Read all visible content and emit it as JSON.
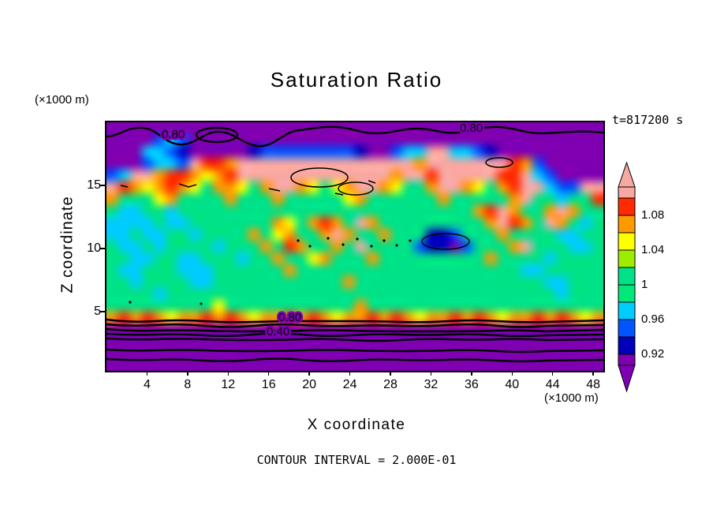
{
  "title": "Saturation Ratio",
  "timestamp": "t=817200 s",
  "footer": "CONTOUR INTERVAL = 2.000E-01",
  "axes": {
    "x": {
      "label": "X coordinate",
      "unit": "(×1000 m)",
      "ticks": [
        4,
        8,
        12,
        16,
        20,
        24,
        28,
        32,
        36,
        40,
        44,
        48
      ]
    },
    "y": {
      "label": "Z coordinate",
      "unit": "(×1000 m)",
      "ticks": [
        5,
        10,
        15
      ]
    }
  },
  "colorbar": {
    "labels": [
      "1.08",
      "1.04",
      "1",
      "0.96",
      "0.92"
    ],
    "segments": [
      {
        "name": "pink",
        "color": "#f7a8a2"
      },
      {
        "name": "red",
        "color": "#ff2a00"
      },
      {
        "name": "orange",
        "color": "#ff9900"
      },
      {
        "name": "yellow",
        "color": "#ffff00"
      },
      {
        "name": "yellow-green",
        "color": "#9ded00"
      },
      {
        "name": "green",
        "color": "#00e287"
      },
      {
        "name": "green-2",
        "color": "#00e87a"
      },
      {
        "name": "cyan",
        "color": "#00ccff"
      },
      {
        "name": "blue",
        "color": "#0055ff"
      },
      {
        "name": "navy",
        "color": "#0000bb"
      },
      {
        "name": "purple",
        "color": "#7f00b2"
      }
    ]
  },
  "chart_data": {
    "type": "filled_contour",
    "title": "Saturation Ratio",
    "time": "t=817200 s",
    "x_axis": {
      "label": "X coordinate",
      "unit": "×1000 m",
      "range": [
        0,
        49
      ],
      "ticks": [
        4,
        8,
        12,
        16,
        20,
        24,
        28,
        32,
        36,
        40,
        44,
        48
      ]
    },
    "y_axis": {
      "label": "Z coordinate",
      "unit": "×1000 m",
      "range": [
        0,
        20
      ],
      "ticks": [
        5,
        10,
        15
      ]
    },
    "contour_interval": "2.000E-01",
    "contour_line_labels": [
      "0.80",
      "0.80",
      "0.80",
      "0.40"
    ],
    "color_levels": [
      "0.92",
      "0.96",
      "1",
      "1.04",
      "1.08"
    ],
    "cols": 42,
    "grid": [
      "PPPPPPPPPPPPPPPPPPPPPPPPPPPPPPPPPPPPPPPPPP",
      "PPPPBCBPPPPPPPPPPPPPPPPPPPPPPPPPPPPPPPPPPP",
      "PPPCCBNPPPPPNBBBBBBBBNPPBCCKKCCBNPPPPPPPPP",
      "PPPBCCBKRROKKKKKKKKKKKKKKKOKKKKKKKROBPPPPP",
      "BCKKORROYORKKKKKKKKKKKKKOKKRKKKKKRRKCBPPPP",
      "KROYOROYGOOYGOKKOYGYOKKOYGGOKKOYGORKKCBBKK",
      "OGGGYOGGGGOGGGOGGGGGYOGGGGGGOGGGGGOKGGCGGR",
      "GCCGGCGGGGGGGGGGGGGGGGGGGGGGGGGORKOGGOKOGG",
      "CCCCGCCGGGGGGGOYGOROGKOGGGGGGGGGOKROGKOGCG",
      "CCGCCGGCGGGGOGYOGGOKOGGOGGGNNBGGGOGGGGCCGG",
      "GCCGCGGGGCGGGOGROGGOGKGGGGBNNPBGGGOKGGGCCG",
      "GGCCGGCCGGGCGGOGGYOGGGOGGGGGGGGGOGGGGCGGGG",
      "GCCGGGCCCGGGGGGOGGGGGGGGGGGGGGGGGGGCCGGGGG",
      "GGCGGGGCCGGGGGGGGGGGOGGGGGGGGGGGGGGGGCCGGG",
      "GGGGCGGGGGGGGGGGGGGGGGGGGGGGGGGGGGGGGGCGGG",
      "GGGGGGGGGYGGGGGGGGGGGOGGGGGGGGGGGGGGGGGGGG",
      "OROROYOOROROYOOROROYOOROROYOOROROYOOROROYO",
      "PPPPPPPPPPPPPPPPPPPPPPPPPPPPPPPPPPPPPPPPPP",
      "PPPPPPPPPPPPPPPPPPPPPPPPPPPPPPPPPPPPPPPPPP",
      "PPPPPPPPPPPPPPPPPPPPPPPPPPPPPPPPPPPPPPPPPP",
      "PPPPPPPPPPPPPPPPPPPPPPPPPPPPPPPPPPPPPPPPPP"
    ],
    "palette": {
      "K": {
        "color": "#f7a8a2",
        "value": "> 1.10"
      },
      "R": {
        "color": "#ff2a00",
        "value": "1.08–1.10"
      },
      "O": {
        "color": "#ff9900",
        "value": "1.06–1.08"
      },
      "Y": {
        "color": "#ffff00",
        "value": "1.04–1.06"
      },
      "g": {
        "color": "#9ded00",
        "value": "1.02–1.04"
      },
      "G": {
        "color": "#00e287",
        "value": "0.98–1.02"
      },
      "C": {
        "color": "#00ccff",
        "value": "0.96–0.98"
      },
      "B": {
        "color": "#0055ff",
        "value": "0.94–0.96"
      },
      "N": {
        "color": "#0000bb",
        "value": "0.92–0.94"
      },
      "P": {
        "color": "#7f00b2",
        "value": "< 0.92"
      }
    }
  }
}
